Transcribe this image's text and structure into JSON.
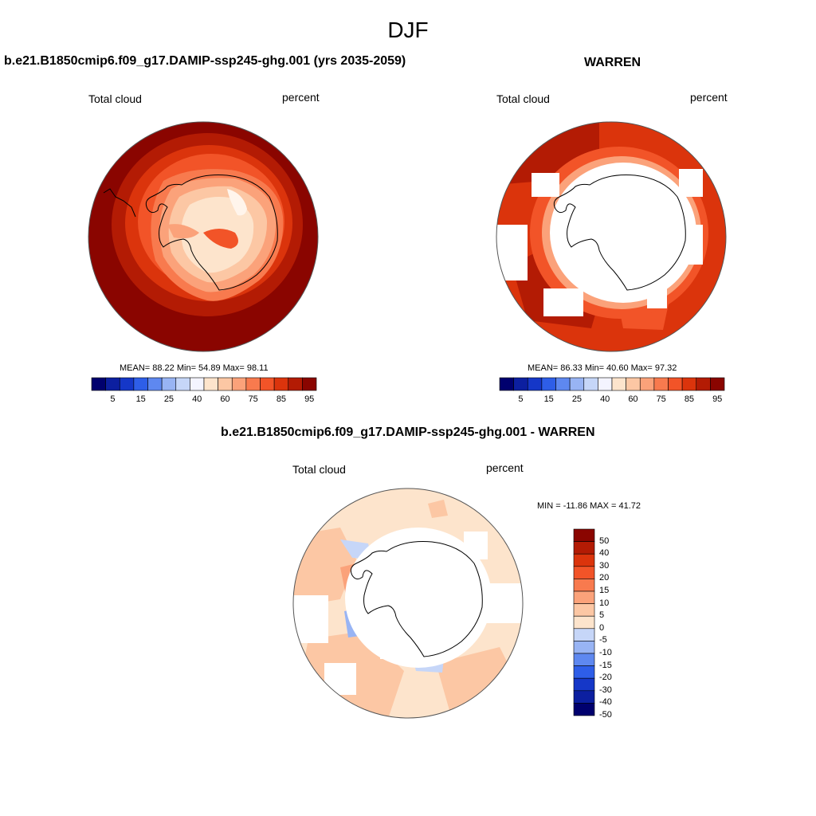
{
  "page_title": "DJF",
  "panels": {
    "left": {
      "title": "b.e21.B1850cmip6.f09_g17.DAMIP-ssp245-ghg.001 (yrs 2035-2059)",
      "variable": "Total cloud",
      "units": "percent",
      "stats": "MEAN=  88.22  Min=  54.89  Max=  98.11"
    },
    "right": {
      "title": "WARREN",
      "variable": "Total cloud",
      "units": "percent",
      "stats": "MEAN=  86.33  Min=  40.60  Max=  97.32"
    },
    "diff": {
      "title": "b.e21.B1850cmip6.f09_g17.DAMIP-ssp245-ghg.001 - WARREN",
      "variable": "Total cloud",
      "units": "percent",
      "stats": "MIN = -11.86 MAX =  41.72"
    }
  },
  "colorbar_abs": {
    "labels": [
      "5",
      "15",
      "25",
      "40",
      "60",
      "75",
      "85",
      "95"
    ],
    "colors": [
      "#00006e",
      "#0c1fa0",
      "#1537c8",
      "#2e5ee8",
      "#5e88f0",
      "#98b4f4",
      "#c6d6f8",
      "#f4f4ff",
      "#fde4cc",
      "#fcc7a4",
      "#fba27a",
      "#f87a4e",
      "#f25428",
      "#db340c",
      "#b31b04",
      "#8a0500"
    ]
  },
  "colorbar_diff": {
    "labels": [
      "50",
      "40",
      "30",
      "20",
      "15",
      "10",
      "5",
      "0",
      "-5",
      "-10",
      "-15",
      "-20",
      "-30",
      "-40",
      "-50"
    ],
    "colors": [
      "#8a0500",
      "#b31b04",
      "#db340c",
      "#f25428",
      "#f87a4e",
      "#fba27a",
      "#fcc7a4",
      "#fde4cc",
      "#c6d6f8",
      "#98b4f4",
      "#5e88f0",
      "#2e5ee8",
      "#1537c8",
      "#0c1fa0",
      "#00006e"
    ]
  }
}
